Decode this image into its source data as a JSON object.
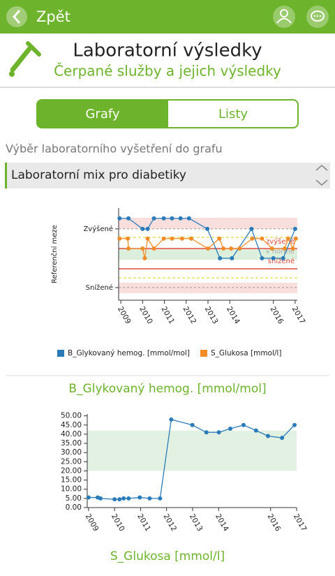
{
  "header": {
    "back": "Zpět"
  },
  "title": "Laboratorní výsledky",
  "subtitle": "Čerpané služby a jejich výsledky",
  "tabs": [
    "Grafy",
    "Listy"
  ],
  "selector_label": "Výběr laboratorního vyšetření do grafu",
  "selected": "Laboratorní mix pro diabetiky",
  "chart_data": [
    {
      "type": "line",
      "ylabel": "Referenční meze",
      "xlim": [
        2008.9,
        2017.1
      ],
      "xticks": [
        2009,
        2010,
        2011,
        2012,
        2013,
        2014,
        2016,
        2017
      ],
      "ylim": [
        -1.43,
        1.71
      ],
      "yticks": [
        {
          "value": 1,
          "label": "Zvýšené"
        },
        {
          "value": -1,
          "label": "Snížené"
        }
      ],
      "reference_bands": [
        {
          "from": 1.0,
          "to": 1.38,
          "color": "#f9dede"
        },
        {
          "from": -0.05,
          "to": 0.31,
          "color": "#dcefdc"
        },
        {
          "from": -1.19,
          "to": -0.83,
          "color": "#f9dede"
        }
      ],
      "reference_lines": [
        {
          "value": 0.71,
          "color": "#e8e060"
        },
        {
          "value": 0.33,
          "color": "#e04a3a"
        },
        {
          "value": -0.36,
          "color": "#e04a3a"
        },
        {
          "value": -0.67,
          "color": "#e8e060"
        }
      ],
      "annotations": [
        "zvýšené",
        "v normě",
        "snížené"
      ],
      "series": [
        {
          "name": "B_Glykovaný hemog. [mmol/mol]",
          "color": "#2b7bb9",
          "x": [
            2008.94,
            2009.35,
            2010.0,
            2010.23,
            2010.52,
            2010.97,
            2011.35,
            2011.74,
            2012.13,
            2012.97,
            2013.55,
            2014.1,
            2015.0,
            2015.48,
            2016.0,
            2016.45,
            2017.0
          ],
          "values": [
            1.36,
            1.36,
            1.0,
            1.0,
            1.36,
            1.36,
            1.36,
            1.36,
            1.36,
            1.0,
            0,
            0,
            1.0,
            0,
            0,
            0,
            1.0
          ]
        },
        {
          "name": "S_Glukosa [mmol/l]",
          "color": "#f28c28",
          "x": [
            2008.94,
            2009.32,
            2009.35,
            2010.0,
            2010.1,
            2010.23,
            2010.52,
            2010.97,
            2011.35,
            2011.81,
            2012.23,
            2013.0,
            2013.52,
            2013.71,
            2014.06,
            2014.45,
            2015.03,
            2015.48,
            2015.94,
            2016.52,
            2016.68,
            2016.9,
            2017.03
          ],
          "values": [
            0.67,
            0.67,
            0.33,
            0.33,
            0,
            0.67,
            0.33,
            0.67,
            0.67,
            0.67,
            0.67,
            0.33,
            0.67,
            0.33,
            0.33,
            0.33,
            0.67,
            0.67,
            0.33,
            0.33,
            0.67,
            0.33,
            0.67
          ]
        }
      ]
    },
    {
      "type": "line",
      "title": "B_Glykovaný hemog. [mmol/mol]",
      "xlim": [
        2008.95,
        2017.0
      ],
      "xticks": [
        2009,
        2010,
        2011,
        2012,
        2013,
        2014,
        2016,
        2017
      ],
      "ylim": [
        0,
        51
      ],
      "yticks": [
        {
          "value": 0,
          "label": "0.00"
        },
        {
          "value": 5,
          "label": "5.00"
        },
        {
          "value": 10,
          "label": "10.00"
        },
        {
          "value": 15,
          "label": "15.00"
        },
        {
          "value": 20,
          "label": "20.00"
        },
        {
          "value": 25,
          "label": "25.00"
        },
        {
          "value": 30,
          "label": "30.00"
        },
        {
          "value": 35,
          "label": "35.00"
        },
        {
          "value": 40,
          "label": "40.00"
        },
        {
          "value": 45,
          "label": "45.00"
        },
        {
          "value": 50,
          "label": "50.00"
        }
      ],
      "reference_bands": [
        {
          "from": 20,
          "to": 42,
          "color": "#e3f1e3"
        }
      ],
      "series": [
        {
          "name": "B_Glykovaný hemog. [mmol/mol]",
          "color": "#2b7bb9",
          "x": [
            2009.0,
            2009.35,
            2009.46,
            2010.0,
            2010.19,
            2010.35,
            2010.54,
            2010.97,
            2011.35,
            2011.75,
            2012.18,
            2012.99,
            2013.53,
            2014.01,
            2014.45,
            2014.96,
            2015.44,
            2015.9,
            2016.44,
            2016.92
          ],
          "values": [
            5.5,
            5.5,
            5,
            4.5,
            4.5,
            5,
            5,
            5.5,
            5,
            5,
            48,
            45,
            41,
            41,
            43,
            45,
            42,
            39,
            38,
            45
          ]
        }
      ]
    }
  ],
  "next_chart_title": "S_Glukosa [mmol/l]"
}
